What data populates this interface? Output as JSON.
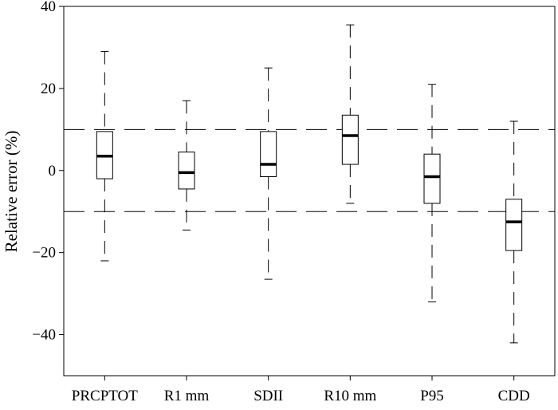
{
  "chart_data": {
    "type": "box",
    "title": "",
    "xlabel": "",
    "ylabel": "Relative error (%)",
    "ylim": [
      -50,
      40
    ],
    "yticks": [
      40,
      20,
      0,
      -20,
      -40
    ],
    "ytick_labels": [
      "40",
      "20",
      "0",
      "−20",
      "−40"
    ],
    "reference_lines": [
      10,
      -10
    ],
    "reference_line_style": "dashed",
    "grid": false,
    "categories": [
      "PRCPTOT",
      "R1 mm",
      "SDII",
      "R10 mm",
      "P95",
      "CDD"
    ],
    "boxes": [
      {
        "category": "PRCPTOT",
        "whisker_low": -22,
        "q1": -2,
        "median": 3.5,
        "q3": 9.5,
        "whisker_high": 29
      },
      {
        "category": "R1 mm",
        "whisker_low": -14.5,
        "q1": -4.5,
        "median": -0.5,
        "q3": 4.5,
        "whisker_high": 17
      },
      {
        "category": "SDII",
        "whisker_low": -26.5,
        "q1": -1.5,
        "median": 1.5,
        "q3": 9.5,
        "whisker_high": 25
      },
      {
        "category": "R10 mm",
        "whisker_low": -8,
        "q1": 1.5,
        "median": 8.5,
        "q3": 13.5,
        "whisker_high": 35.5
      },
      {
        "category": "P95",
        "whisker_low": -32,
        "q1": -8,
        "median": -1.5,
        "q3": 4,
        "whisker_high": 21
      },
      {
        "category": "CDD",
        "whisker_low": -42,
        "q1": -19.5,
        "median": -12.5,
        "q3": -7,
        "whisker_high": 12
      }
    ]
  }
}
